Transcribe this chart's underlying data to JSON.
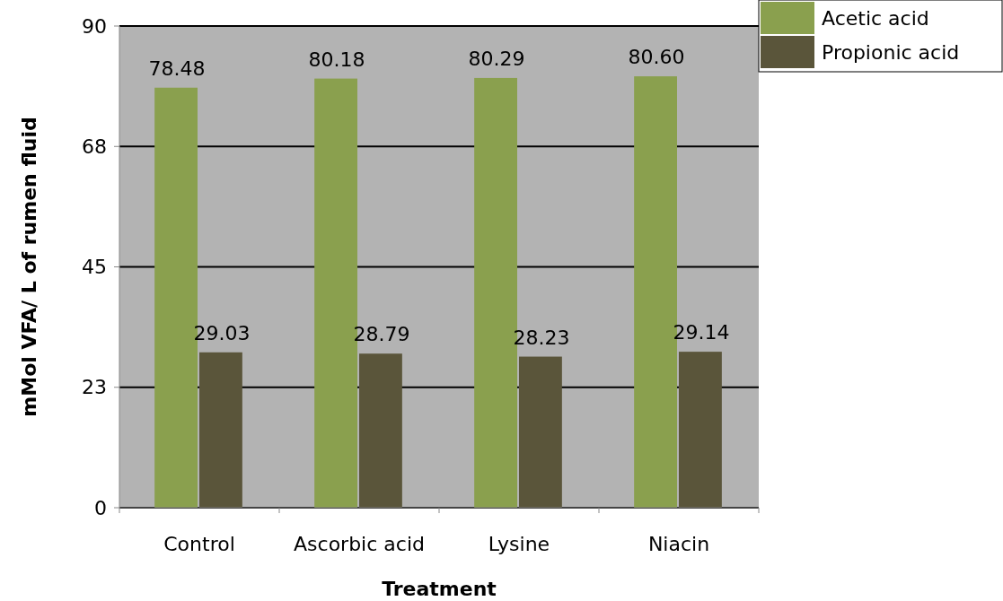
{
  "chart_data": {
    "type": "bar",
    "xlabel": "Treatment",
    "ylabel": "mMol VFA/ L of rumen fluid",
    "categories": [
      "Control",
      "Ascorbic acid",
      "Lysine",
      "Niacin"
    ],
    "series": [
      {
        "name": "Acetic acid",
        "color": "#8aa04e",
        "values": [
          78.48,
          80.18,
          80.29,
          80.6
        ],
        "value_labels": [
          "78.48",
          "80.18",
          "80.29",
          "80.60"
        ]
      },
      {
        "name": "Propionic acid",
        "color": "#5a553a",
        "values": [
          29.03,
          28.79,
          28.23,
          29.14
        ],
        "value_labels": [
          "29.03",
          "28.79",
          "28.23",
          "29.14"
        ]
      }
    ],
    "ylim": [
      0,
      90
    ],
    "yticks": [
      0,
      {
        "value": 22.5,
        "label": "23"
      },
      45,
      {
        "value": 67.5,
        "label": "68"
      },
      90
    ],
    "grid": "y",
    "legend": "top right"
  }
}
